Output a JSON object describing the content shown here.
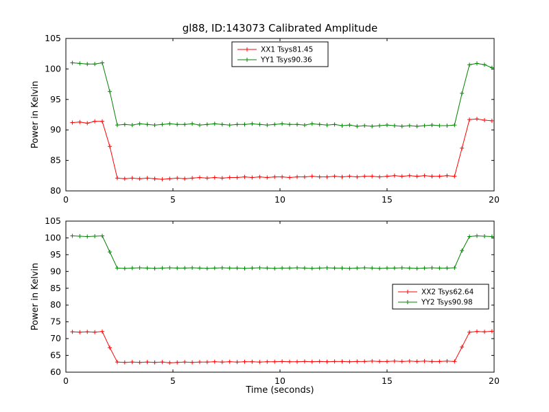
{
  "figure": {
    "title": "gl88, ID:143073 Calibrated Amplitude",
    "xlabel": "Time (seconds)",
    "background": "#ffffff",
    "frame_color": "#000000"
  },
  "chart_data": [
    {
      "type": "line",
      "ylabel": "Power in Kelvin",
      "xlim": [
        0,
        20
      ],
      "ylim": [
        80,
        105
      ],
      "xticks": [
        0,
        5,
        10,
        15,
        20
      ],
      "yticks": [
        80,
        85,
        90,
        95,
        100,
        105
      ],
      "grid": false,
      "legend_position": "upper center",
      "x": [
        0.3,
        0.65,
        1.0,
        1.35,
        1.7,
        2.05,
        2.4,
        2.75,
        3.1,
        3.45,
        3.8,
        4.15,
        4.5,
        4.85,
        5.2,
        5.55,
        5.9,
        6.25,
        6.6,
        6.95,
        7.3,
        7.65,
        8.0,
        8.35,
        8.7,
        9.05,
        9.4,
        9.75,
        10.1,
        10.45,
        10.8,
        11.15,
        11.5,
        11.85,
        12.2,
        12.55,
        12.9,
        13.25,
        13.6,
        13.95,
        14.3,
        14.65,
        15.0,
        15.35,
        15.7,
        16.05,
        16.4,
        16.75,
        17.1,
        17.45,
        17.8,
        18.15,
        18.5,
        18.85,
        19.2,
        19.55,
        19.9
      ],
      "series": [
        {
          "name": "XX1 Tsys81.45",
          "color": "#ff0000",
          "marker": "+",
          "values": [
            91.2,
            91.3,
            91.1,
            91.4,
            91.4,
            87.3,
            82.1,
            82.0,
            82.1,
            82.0,
            82.1,
            82.0,
            81.9,
            82.0,
            82.1,
            82.0,
            82.1,
            82.2,
            82.1,
            82.2,
            82.1,
            82.2,
            82.2,
            82.3,
            82.2,
            82.3,
            82.2,
            82.3,
            82.3,
            82.2,
            82.3,
            82.3,
            82.4,
            82.3,
            82.3,
            82.4,
            82.3,
            82.4,
            82.3,
            82.4,
            82.4,
            82.3,
            82.4,
            82.5,
            82.4,
            82.5,
            82.4,
            82.5,
            82.4,
            82.4,
            82.5,
            82.4,
            87.0,
            91.7,
            91.8,
            91.6,
            91.5
          ]
        },
        {
          "name": "YY1 Tsys90.36",
          "color": "#008000",
          "marker": "+",
          "values": [
            101.0,
            100.9,
            100.8,
            100.8,
            101.0,
            96.3,
            90.8,
            90.9,
            90.8,
            91.0,
            90.9,
            90.8,
            90.9,
            91.0,
            90.9,
            90.9,
            91.0,
            90.8,
            90.9,
            91.0,
            90.9,
            90.8,
            90.9,
            90.9,
            91.0,
            90.9,
            90.8,
            90.9,
            91.0,
            90.9,
            90.9,
            90.8,
            91.0,
            90.9,
            90.8,
            90.9,
            90.7,
            90.8,
            90.6,
            90.7,
            90.6,
            90.7,
            90.8,
            90.7,
            90.6,
            90.7,
            90.6,
            90.7,
            90.8,
            90.7,
            90.7,
            90.8,
            96.0,
            100.7,
            100.9,
            100.7,
            100.2
          ]
        }
      ]
    },
    {
      "type": "line",
      "ylabel": "Power in Kelvin",
      "xlim": [
        0,
        20
      ],
      "ylim": [
        60,
        105
      ],
      "xticks": [
        0,
        5,
        10,
        15,
        20
      ],
      "yticks": [
        60,
        65,
        70,
        75,
        80,
        85,
        90,
        95,
        100,
        105
      ],
      "grid": false,
      "legend_position": "center right",
      "x": [
        0.3,
        0.65,
        1.0,
        1.35,
        1.7,
        2.05,
        2.4,
        2.75,
        3.1,
        3.45,
        3.8,
        4.15,
        4.5,
        4.85,
        5.2,
        5.55,
        5.9,
        6.25,
        6.6,
        6.95,
        7.3,
        7.65,
        8.0,
        8.35,
        8.7,
        9.05,
        9.4,
        9.75,
        10.1,
        10.45,
        10.8,
        11.15,
        11.5,
        11.85,
        12.2,
        12.55,
        12.9,
        13.25,
        13.6,
        13.95,
        14.3,
        14.65,
        15.0,
        15.35,
        15.7,
        16.05,
        16.4,
        16.75,
        17.1,
        17.45,
        17.8,
        18.15,
        18.5,
        18.85,
        19.2,
        19.55,
        19.9
      ],
      "series": [
        {
          "name": "XX2 Tsys62.64",
          "color": "#ff0000",
          "marker": "+",
          "values": [
            72.0,
            71.9,
            72.0,
            71.9,
            72.1,
            67.3,
            63.0,
            62.9,
            63.0,
            62.9,
            63.0,
            62.9,
            63.0,
            62.8,
            62.9,
            63.0,
            62.9,
            63.0,
            63.0,
            63.1,
            63.0,
            63.1,
            63.0,
            63.1,
            63.1,
            63.0,
            63.1,
            63.1,
            63.2,
            63.1,
            63.1,
            63.2,
            63.1,
            63.2,
            63.1,
            63.2,
            63.2,
            63.1,
            63.2,
            63.2,
            63.3,
            63.2,
            63.2,
            63.3,
            63.2,
            63.3,
            63.2,
            63.3,
            63.2,
            63.2,
            63.3,
            63.2,
            67.5,
            71.9,
            72.1,
            72.0,
            72.2
          ]
        },
        {
          "name": "YY2 Tsys90.98",
          "color": "#008000",
          "marker": "+",
          "values": [
            100.6,
            100.5,
            100.4,
            100.5,
            100.6,
            95.8,
            91.0,
            90.9,
            91.0,
            91.1,
            91.0,
            90.9,
            91.0,
            91.1,
            91.0,
            91.0,
            91.1,
            91.0,
            90.9,
            91.0,
            91.1,
            91.0,
            91.0,
            90.9,
            91.0,
            91.1,
            91.0,
            90.9,
            91.0,
            91.0,
            91.1,
            91.0,
            90.9,
            91.0,
            91.1,
            91.0,
            91.0,
            90.9,
            91.0,
            91.1,
            91.0,
            90.9,
            91.0,
            91.0,
            91.1,
            91.0,
            90.9,
            91.0,
            91.1,
            91.0,
            91.0,
            91.1,
            96.2,
            100.4,
            100.6,
            100.5,
            100.4
          ]
        }
      ]
    }
  ]
}
